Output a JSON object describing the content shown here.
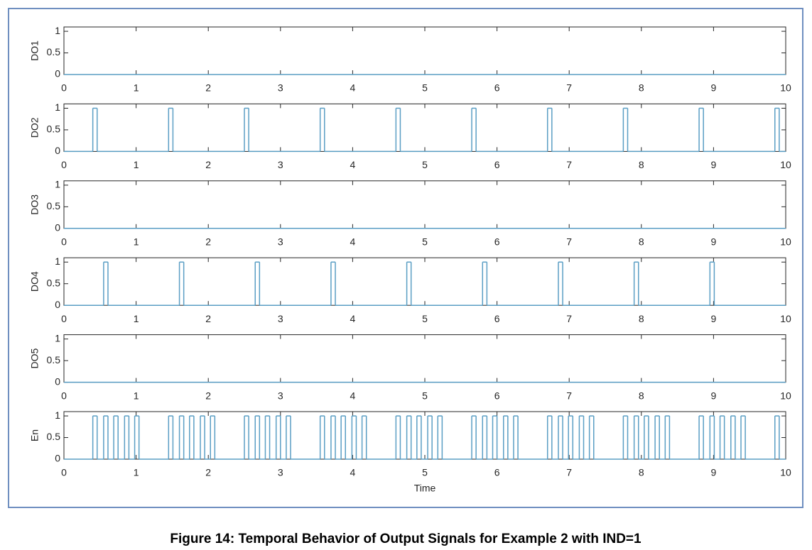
{
  "chart_data": [
    {
      "type": "line",
      "step": "post",
      "ylabel": "DO1",
      "color": "#5a9ec4",
      "xlim": [
        0,
        10
      ],
      "ylim": [
        0,
        1.1
      ],
      "xticks": [
        0,
        1,
        2,
        3,
        4,
        5,
        6,
        7,
        8,
        9,
        10
      ],
      "yticks": [
        0,
        0.5,
        1
      ],
      "x": [
        0,
        10
      ],
      "values": [
        0,
        0
      ]
    },
    {
      "type": "line",
      "step": "post",
      "ylabel": "DO2",
      "color": "#5a9ec4",
      "xlim": [
        0,
        10
      ],
      "ylim": [
        0,
        1.1
      ],
      "xticks": [
        0,
        1,
        2,
        3,
        4,
        5,
        6,
        7,
        8,
        9,
        10
      ],
      "yticks": [
        0,
        0.5,
        1
      ],
      "x": [
        0,
        0.4,
        0.46,
        1.45,
        1.51,
        2.5,
        2.56,
        3.55,
        3.61,
        4.6,
        4.66,
        5.65,
        5.71,
        6.7,
        6.76,
        7.75,
        7.81,
        8.8,
        8.86,
        9.85,
        9.91,
        10
      ],
      "values": [
        0,
        1,
        0,
        1,
        0,
        1,
        0,
        1,
        0,
        1,
        0,
        1,
        0,
        1,
        0,
        1,
        0,
        1,
        0,
        1,
        0,
        0
      ]
    },
    {
      "type": "line",
      "step": "post",
      "ylabel": "DO3",
      "color": "#5a9ec4",
      "xlim": [
        0,
        10
      ],
      "ylim": [
        0,
        1.1
      ],
      "xticks": [
        0,
        1,
        2,
        3,
        4,
        5,
        6,
        7,
        8,
        9,
        10
      ],
      "yticks": [
        0,
        0.5,
        1
      ],
      "x": [
        0,
        10
      ],
      "values": [
        0,
        0
      ]
    },
    {
      "type": "line",
      "step": "post",
      "ylabel": "DO4",
      "color": "#5a9ec4",
      "xlim": [
        0,
        10
      ],
      "ylim": [
        0,
        1.1
      ],
      "xticks": [
        0,
        1,
        2,
        3,
        4,
        5,
        6,
        7,
        8,
        9,
        10
      ],
      "yticks": [
        0,
        0.5,
        1
      ],
      "x": [
        0,
        0.55,
        0.61,
        1.6,
        1.66,
        2.65,
        2.71,
        3.7,
        3.76,
        4.75,
        4.81,
        5.8,
        5.86,
        6.85,
        6.91,
        7.9,
        7.96,
        8.95,
        9.01,
        10
      ],
      "values": [
        0,
        1,
        0,
        1,
        0,
        1,
        0,
        1,
        0,
        1,
        0,
        1,
        0,
        1,
        0,
        1,
        0,
        1,
        0,
        0
      ]
    },
    {
      "type": "line",
      "step": "post",
      "ylabel": "DO5",
      "color": "#5a9ec4",
      "xlim": [
        0,
        10
      ],
      "ylim": [
        0,
        1.1
      ],
      "xticks": [
        0,
        1,
        2,
        3,
        4,
        5,
        6,
        7,
        8,
        9,
        10
      ],
      "yticks": [
        0,
        0.5,
        1
      ],
      "x": [
        0,
        10
      ],
      "values": [
        0,
        0
      ]
    },
    {
      "type": "line",
      "step": "post",
      "ylabel": "En",
      "xlabel": "Time",
      "color": "#5a9ec4",
      "xlim": [
        0,
        10
      ],
      "ylim": [
        0,
        1.1
      ],
      "xticks": [
        0,
        1,
        2,
        3,
        4,
        5,
        6,
        7,
        8,
        9,
        10
      ],
      "yticks": [
        0,
        0.5,
        1
      ],
      "x": [
        0,
        0.4,
        0.46,
        0.55,
        0.61,
        0.69,
        0.75,
        0.84,
        0.9,
        0.98,
        1.04,
        1.45,
        1.51,
        1.6,
        1.66,
        1.74,
        1.8,
        1.89,
        1.95,
        2.03,
        2.09,
        2.5,
        2.56,
        2.65,
        2.71,
        2.79,
        2.85,
        2.94,
        3.0,
        3.08,
        3.14,
        3.55,
        3.61,
        3.7,
        3.76,
        3.84,
        3.9,
        3.99,
        4.05,
        4.13,
        4.19,
        4.6,
        4.66,
        4.75,
        4.81,
        4.89,
        4.95,
        5.04,
        5.1,
        5.18,
        5.24,
        5.65,
        5.71,
        5.8,
        5.86,
        5.94,
        6.0,
        6.09,
        6.15,
        6.23,
        6.29,
        6.7,
        6.76,
        6.85,
        6.91,
        6.99,
        7.05,
        7.14,
        7.2,
        7.28,
        7.34,
        7.75,
        7.81,
        7.9,
        7.96,
        8.04,
        8.1,
        8.19,
        8.25,
        8.33,
        8.39,
        8.8,
        8.86,
        8.95,
        9.01,
        9.09,
        9.15,
        9.24,
        9.3,
        9.38,
        9.44,
        9.85,
        9.91,
        10
      ],
      "values": [
        0,
        1,
        0,
        1,
        0,
        1,
        0,
        1,
        0,
        1,
        0,
        1,
        0,
        1,
        0,
        1,
        0,
        1,
        0,
        1,
        0,
        1,
        0,
        1,
        0,
        1,
        0,
        1,
        0,
        1,
        0,
        1,
        0,
        1,
        0,
        1,
        0,
        1,
        0,
        1,
        0,
        1,
        0,
        1,
        0,
        1,
        0,
        1,
        0,
        1,
        0,
        1,
        0,
        1,
        0,
        1,
        0,
        1,
        0,
        1,
        0,
        1,
        0,
        1,
        0,
        1,
        0,
        1,
        0,
        1,
        0,
        1,
        0,
        1,
        0,
        1,
        0,
        1,
        0,
        1,
        0,
        1,
        0,
        1,
        0,
        1,
        0,
        1,
        0,
        1,
        0,
        1,
        0,
        0
      ]
    }
  ],
  "caption": "Figure 14: Temporal Behavior of Output Signals for Example 2 with IND=1"
}
